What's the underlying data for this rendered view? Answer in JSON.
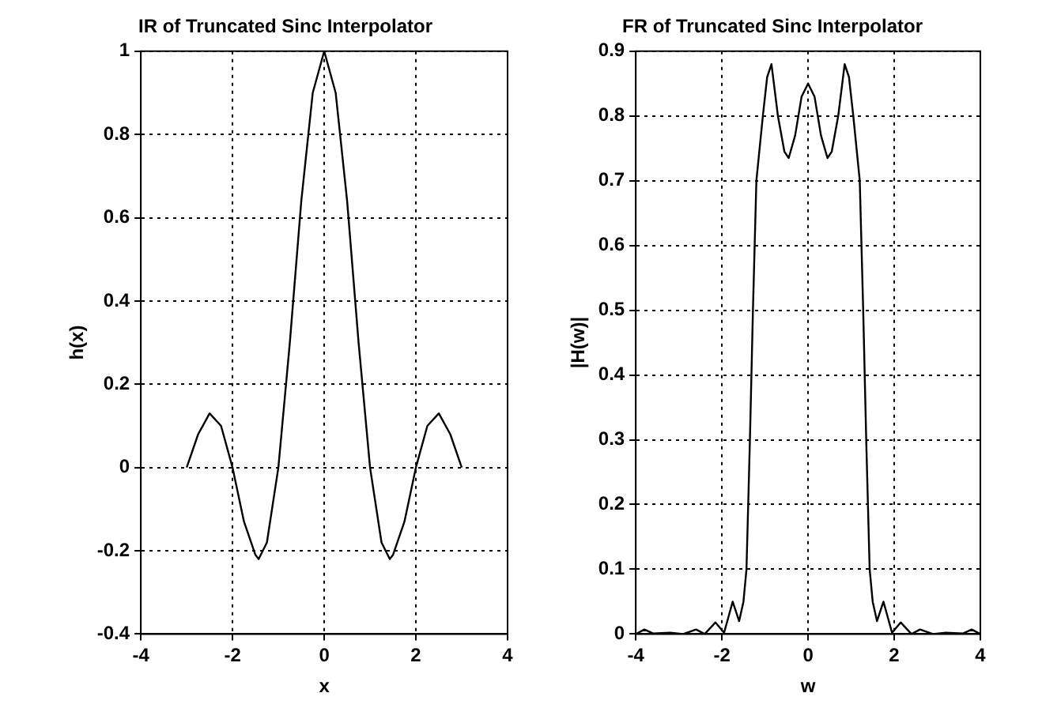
{
  "chart_data": [
    {
      "type": "line",
      "title": "IR of Truncated Sinc Interpolator",
      "xlabel": "x",
      "ylabel": "h(x)",
      "series": [
        {
          "color": "#000000",
          "x": [
            -3,
            -2.75,
            -2.5,
            -2.25,
            -2,
            -1.75,
            -1.5,
            -1.43,
            -1.25,
            -1,
            -0.75,
            -0.5,
            -0.25,
            0,
            0.25,
            0.5,
            0.75,
            1,
            1.25,
            1.43,
            1.5,
            1.75,
            2,
            2.25,
            2.5,
            2.75,
            3
          ],
          "values": [
            0,
            0.08,
            0.13,
            0.1,
            0,
            -0.13,
            -0.21,
            -0.22,
            -0.18,
            0,
            0.3,
            0.64,
            0.9,
            1,
            0.9,
            0.64,
            0.3,
            0,
            -0.18,
            -0.22,
            -0.21,
            -0.13,
            0,
            0.1,
            0.13,
            0.08,
            0
          ]
        }
      ],
      "xlim": [
        -4,
        4
      ],
      "xticks": [
        -4,
        -2,
        0,
        2,
        4
      ],
      "ylim": [
        -0.4,
        1
      ],
      "yticks": [
        -0.4,
        -0.2,
        0,
        0.2,
        0.4,
        0.6,
        0.8,
        1
      ],
      "grid": true,
      "legend": false,
      "marker": "none",
      "line_style": "solid"
    },
    {
      "type": "line",
      "title": "FR of Truncated Sinc Interpolator",
      "xlabel": "w",
      "ylabel": "|H(w)|",
      "series": [
        {
          "color": "#000000",
          "x": [
            -4,
            -3.8,
            -3.6,
            -3.2,
            -2.9,
            -2.6,
            -2.4,
            -2.15,
            -1.95,
            -1.75,
            -1.6,
            -1.5,
            -1.43,
            -1.35,
            -1.28,
            -1.2,
            -1.05,
            -0.95,
            -0.85,
            -0.7,
            -0.55,
            -0.45,
            -0.3,
            -0.15,
            0,
            0.15,
            0.3,
            0.45,
            0.55,
            0.7,
            0.85,
            0.95,
            1.05,
            1.2,
            1.28,
            1.35,
            1.43,
            1.5,
            1.6,
            1.75,
            1.95,
            2.15,
            2.4,
            2.6,
            2.9,
            3.2,
            3.6,
            3.8,
            4
          ],
          "values": [
            0,
            0.007,
            0.001,
            0.002,
            0,
            0.007,
            0,
            0.018,
            0.002,
            0.05,
            0.02,
            0.05,
            0.1,
            0.3,
            0.5,
            0.7,
            0.8,
            0.86,
            0.88,
            0.8,
            0.745,
            0.735,
            0.77,
            0.83,
            0.85,
            0.83,
            0.77,
            0.735,
            0.745,
            0.8,
            0.88,
            0.86,
            0.8,
            0.7,
            0.5,
            0.3,
            0.1,
            0.05,
            0.02,
            0.05,
            0.002,
            0.018,
            0,
            0.007,
            0,
            0.002,
            0.001,
            0.007,
            0
          ]
        }
      ],
      "xlim": [
        -4,
        4
      ],
      "xticks": [
        -4,
        -2,
        0,
        2,
        4
      ],
      "ylim": [
        0,
        0.9
      ],
      "yticks": [
        0,
        0.1,
        0.2,
        0.3,
        0.4,
        0.5,
        0.6,
        0.7,
        0.8,
        0.9
      ],
      "grid": true,
      "legend": false,
      "marker": "none",
      "line_style": "solid"
    }
  ]
}
